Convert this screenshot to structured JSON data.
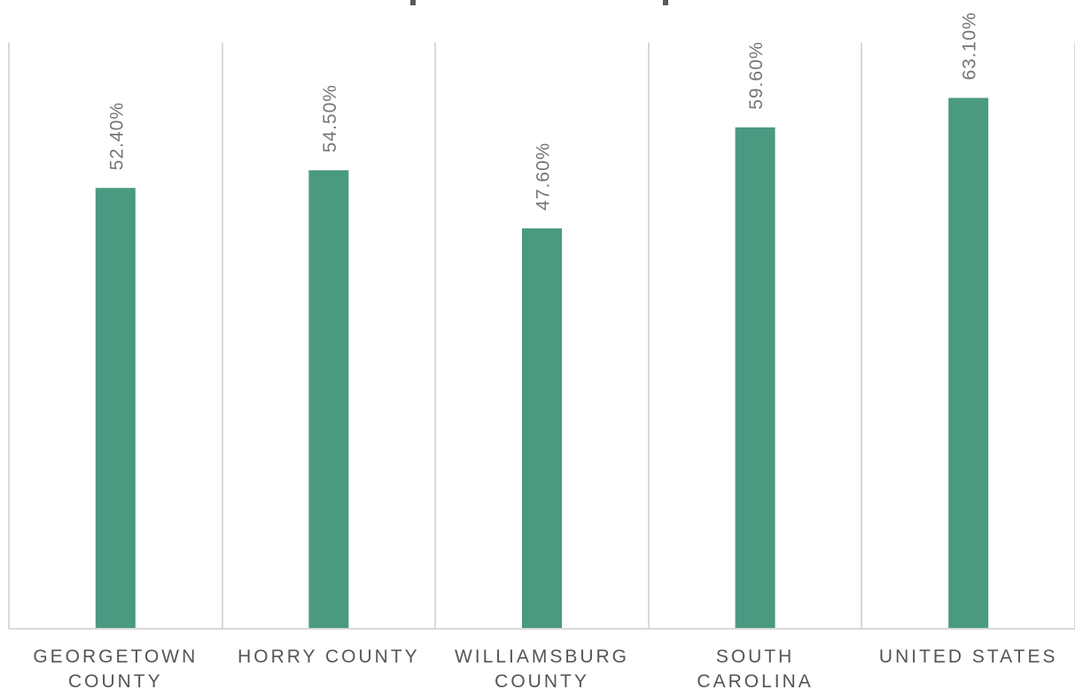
{
  "chart_data": {
    "type": "bar",
    "title": "",
    "xlabel": "",
    "ylabel": "",
    "ylim": [
      0,
      70
    ],
    "grid": false,
    "legend": "none",
    "bar_color": "#4a9a82",
    "categories": [
      [
        "GEORGETOWN",
        "COUNTY"
      ],
      [
        "HORRY COUNTY"
      ],
      [
        "WILLIAMSBURG",
        "COUNTY"
      ],
      [
        "SOUTH",
        "CAROLINA"
      ],
      [
        "UNITED STATES"
      ]
    ],
    "values": [
      52.4,
      54.5,
      47.6,
      59.6,
      63.1
    ],
    "data_labels": [
      "52.40%",
      "54.50%",
      "47.60%",
      "59.60%",
      "63.10%"
    ]
  }
}
